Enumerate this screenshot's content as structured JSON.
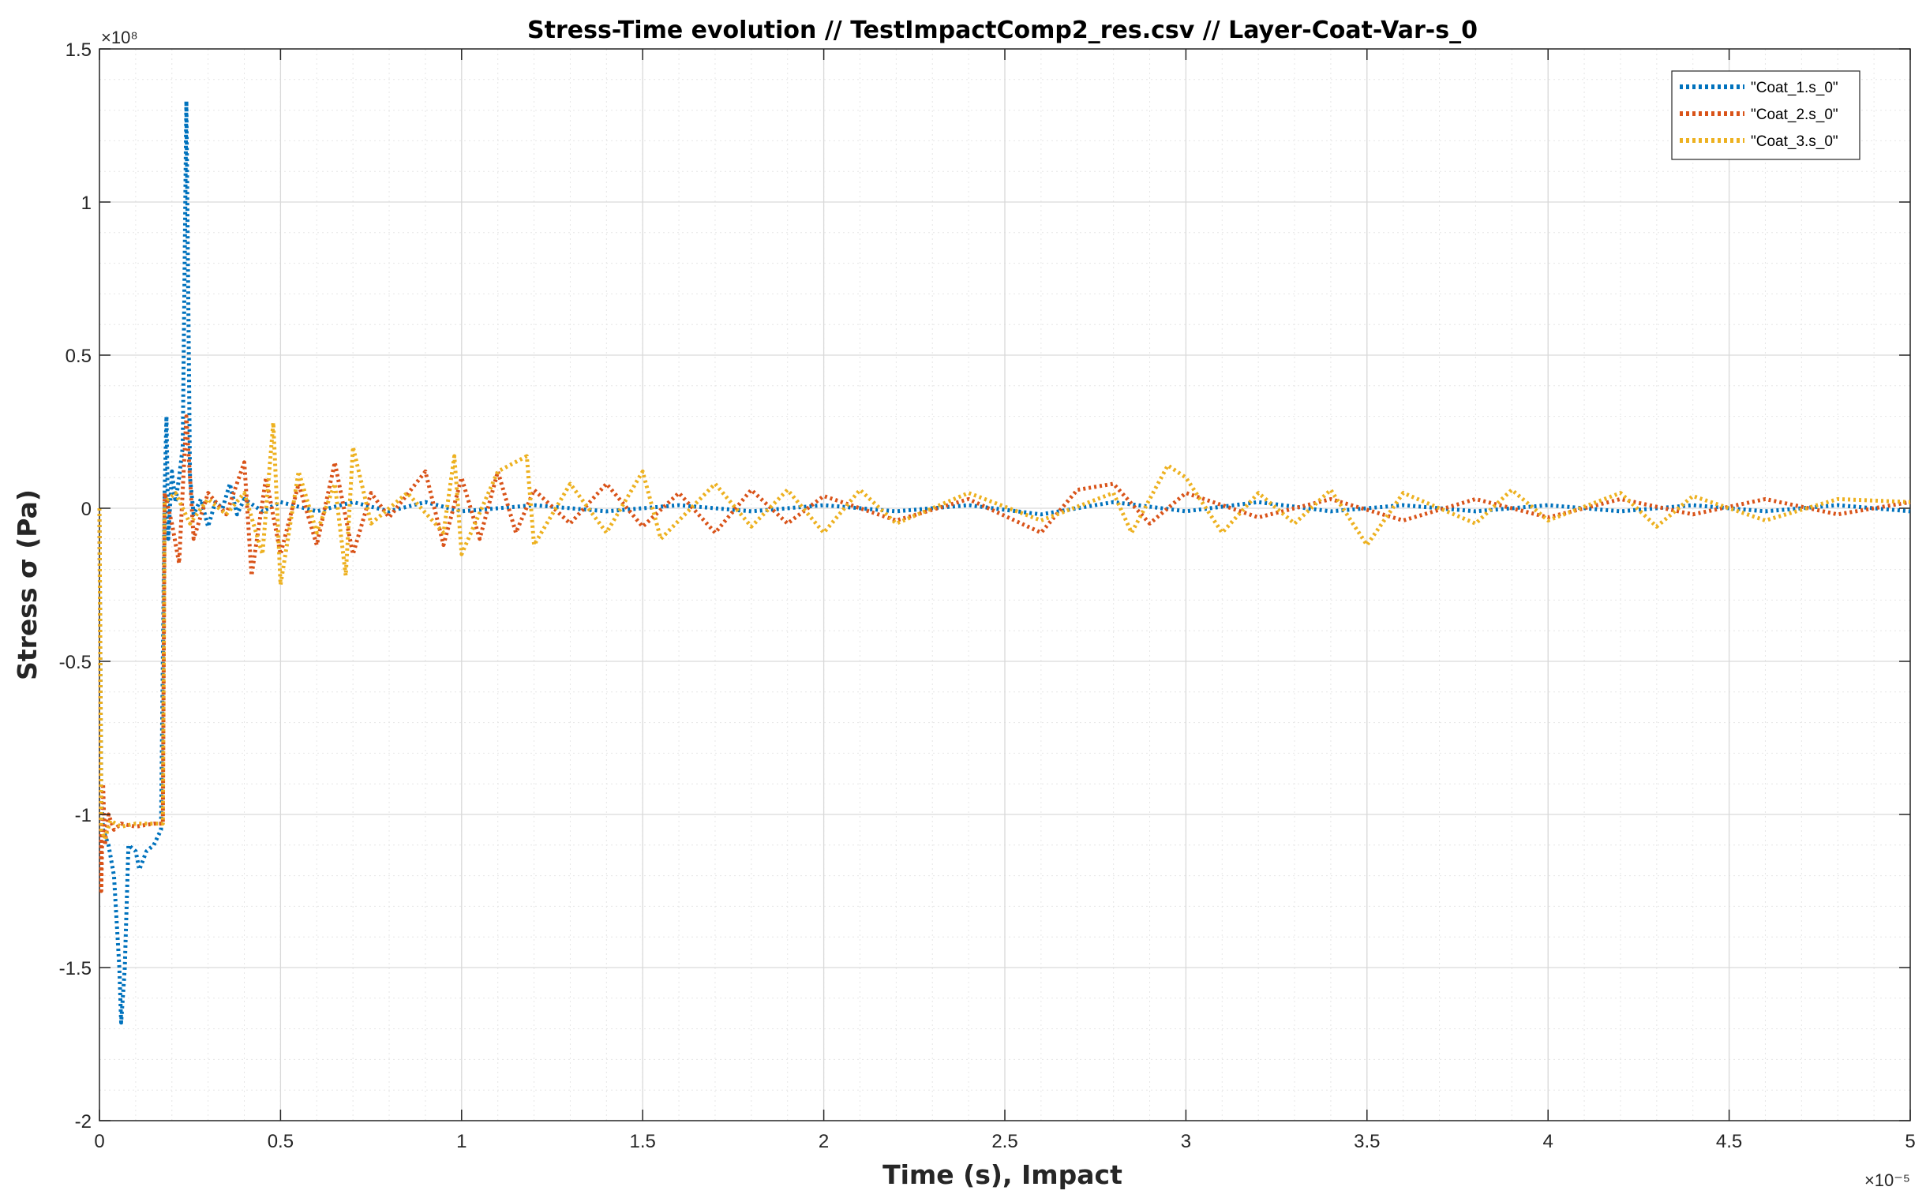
{
  "chart_data": {
    "type": "line",
    "title": "Stress-Time evolution  //  TestImpactComp2_res.csv // Layer-Coat-Var-s_0",
    "xlabel": "Time (s), Impact",
    "ylabel": "Stress σ (Pa)",
    "x_exponent_label": "×10⁻⁵",
    "y_exponent_label": "×10⁸",
    "xlim": [
      0,
      5e-05
    ],
    "ylim": [
      -200000000.0,
      150000000.0
    ],
    "x_tick_labels": [
      "0",
      "0.5",
      "1",
      "1.5",
      "2",
      "2.5",
      "3",
      "3.5",
      "4",
      "4.5",
      "5"
    ],
    "y_tick_labels": [
      "1.5",
      "1",
      "0.5",
      "0",
      "-0.5",
      "-1",
      "-1.5",
      "-2"
    ],
    "grid": true,
    "minor_grid": true,
    "legend_position": "top-right",
    "line_style": "dotted",
    "series": [
      {
        "name": "\"Coat_1.s_0\"",
        "color": "#0072BD",
        "points": [
          [
            0,
            0
          ],
          [
            5e-08,
            -95000000.0
          ],
          [
            1e-07,
            -105000000.0
          ],
          [
            2.5e-07,
            -110000000.0
          ],
          [
            4e-07,
            -120000000.0
          ],
          [
            5.5e-07,
            -150000000.0
          ],
          [
            6e-07,
            -168000000.0
          ],
          [
            7e-07,
            -150000000.0
          ],
          [
            8e-07,
            -110000000.0
          ],
          [
            1e-06,
            -112000000.0
          ],
          [
            1.1e-06,
            -118000000.0
          ],
          [
            1.3e-06,
            -112000000.0
          ],
          [
            1.5e-06,
            -110000000.0
          ],
          [
            1.7e-06,
            -105000000.0
          ],
          [
            1.8e-06,
            5000000.0
          ],
          [
            1.85e-06,
            30000000.0
          ],
          [
            1.9e-06,
            -10000000.0
          ],
          [
            2e-06,
            12000000.0
          ],
          [
            2.1e-06,
            2000000.0
          ],
          [
            2.2e-06,
            10000000.0
          ],
          [
            2.3e-06,
            20000000.0
          ],
          [
            2.4e-06,
            133000000.0
          ],
          [
            2.5e-06,
            10000000.0
          ],
          [
            2.6e-06,
            -2000000.0
          ],
          [
            2.8e-06,
            3000000.0
          ],
          [
            3e-06,
            -6000000.0
          ],
          [
            3.2e-06,
            2000000.0
          ],
          [
            3.4e-06,
            0.0
          ],
          [
            3.6e-06,
            8000000.0
          ],
          [
            3.8e-06,
            -2000000.0
          ],
          [
            4e-06,
            3000000.0
          ],
          [
            4.5e-06,
            -1000000.0
          ],
          [
            5e-06,
            2000000.0
          ],
          [
            6e-06,
            -1000000.0
          ],
          [
            7e-06,
            2000000.0
          ],
          [
            8e-06,
            -1000000.0
          ],
          [
            9e-06,
            2000000.0
          ],
          [
            1e-05,
            -1000000.0
          ],
          [
            1.2e-05,
            1000000.0
          ],
          [
            1.4e-05,
            -1000000.0
          ],
          [
            1.6e-05,
            1000000.0
          ],
          [
            1.8e-05,
            -1000000.0
          ],
          [
            2e-05,
            1000000.0
          ],
          [
            2.2e-05,
            -1000000.0
          ],
          [
            2.4e-05,
            1000000.0
          ],
          [
            2.6e-05,
            -2000000.0
          ],
          [
            2.8e-05,
            2000000.0
          ],
          [
            3e-05,
            -1000000.0
          ],
          [
            3.2e-05,
            2000000.0
          ],
          [
            3.4e-05,
            -1000000.0
          ],
          [
            3.6e-05,
            1000000.0
          ],
          [
            3.8e-05,
            -1000000.0
          ],
          [
            4e-05,
            1000000.0
          ],
          [
            4.2e-05,
            -1000000.0
          ],
          [
            4.4e-05,
            1000000.0
          ],
          [
            4.6e-05,
            -1000000.0
          ],
          [
            4.8e-05,
            1000000.0
          ],
          [
            5e-05,
            -1000000.0
          ]
        ]
      },
      {
        "name": "\"Coat_2.s_0\"",
        "color": "#D95319",
        "points": [
          [
            0,
            0
          ],
          [
            5e-08,
            -125000000.0
          ],
          [
            1e-07,
            -90000000.0
          ],
          [
            1.5e-07,
            -110000000.0
          ],
          [
            2.5e-07,
            -100000000.0
          ],
          [
            4e-07,
            -105000000.0
          ],
          [
            6e-07,
            -103000000.0
          ],
          [
            1e-06,
            -104000000.0
          ],
          [
            1.5e-06,
            -103000000.0
          ],
          [
            1.75e-06,
            -103000000.0
          ],
          [
            1.8e-06,
            5000000.0
          ],
          [
            2e-06,
            -5000000.0
          ],
          [
            2.2e-06,
            -18000000.0
          ],
          [
            2.4e-06,
            30000000.0
          ],
          [
            2.6e-06,
            -10000000.0
          ],
          [
            3e-06,
            5000000.0
          ],
          [
            3.5e-06,
            -2000000.0
          ],
          [
            4e-06,
            15000000.0
          ],
          [
            4.2e-06,
            -22000000.0
          ],
          [
            4.6e-06,
            10000000.0
          ],
          [
            5e-06,
            -15000000.0
          ],
          [
            5.5e-06,
            8000000.0
          ],
          [
            6e-06,
            -12000000.0
          ],
          [
            6.5e-06,
            15000000.0
          ],
          [
            7e-06,
            -15000000.0
          ],
          [
            7.5e-06,
            5000000.0
          ],
          [
            8e-06,
            -3000000.0
          ],
          [
            9e-06,
            12000000.0
          ],
          [
            9.5e-06,
            -12000000.0
          ],
          [
            1e-05,
            10000000.0
          ],
          [
            1.05e-05,
            -10000000.0
          ],
          [
            1.1e-05,
            12000000.0
          ],
          [
            1.15e-05,
            -8000000.0
          ],
          [
            1.2e-05,
            6000000.0
          ],
          [
            1.3e-05,
            -5000000.0
          ],
          [
            1.4e-05,
            8000000.0
          ],
          [
            1.5e-05,
            -6000000.0
          ],
          [
            1.6e-05,
            5000000.0
          ],
          [
            1.7e-05,
            -8000000.0
          ],
          [
            1.8e-05,
            6000000.0
          ],
          [
            1.9e-05,
            -5000000.0
          ],
          [
            2e-05,
            4000000.0
          ],
          [
            2.2e-05,
            -4000000.0
          ],
          [
            2.4e-05,
            3000000.0
          ],
          [
            2.6e-05,
            -8000000.0
          ],
          [
            2.7e-05,
            6000000.0
          ],
          [
            2.8e-05,
            8000000.0
          ],
          [
            2.9e-05,
            -5000000.0
          ],
          [
            3e-05,
            5000000.0
          ],
          [
            3.2e-05,
            -3000000.0
          ],
          [
            3.4e-05,
            3000000.0
          ],
          [
            3.6e-05,
            -4000000.0
          ],
          [
            3.8e-05,
            3000000.0
          ],
          [
            4e-05,
            -3000000.0
          ],
          [
            4.2e-05,
            3000000.0
          ],
          [
            4.4e-05,
            -2000000.0
          ],
          [
            4.6e-05,
            3000000.0
          ],
          [
            4.8e-05,
            -2000000.0
          ],
          [
            5e-05,
            2000000.0
          ]
        ]
      },
      {
        "name": "\"Coat_3.s_0\"",
        "color": "#EDB120",
        "points": [
          [
            0,
            0
          ],
          [
            5e-08,
            -105000000.0
          ],
          [
            1.5e-07,
            -108000000.0
          ],
          [
            3e-07,
            -102000000.0
          ],
          [
            6e-07,
            -104000000.0
          ],
          [
            1e-06,
            -103000000.0
          ],
          [
            1.5e-06,
            -103000000.0
          ],
          [
            1.75e-06,
            -103000000.0
          ],
          [
            1.8e-06,
            2000000.0
          ],
          [
            2.1e-06,
            5000000.0
          ],
          [
            2.5e-06,
            -5000000.0
          ],
          [
            3e-06,
            3000000.0
          ],
          [
            3.5e-06,
            -2000000.0
          ],
          [
            4e-06,
            5000000.0
          ],
          [
            4.5e-06,
            -15000000.0
          ],
          [
            4.8e-06,
            28000000.0
          ],
          [
            5e-06,
            -25000000.0
          ],
          [
            5.5e-06,
            12000000.0
          ],
          [
            6e-06,
            -8000000.0
          ],
          [
            6.5e-06,
            8000000.0
          ],
          [
            6.8e-06,
            -22000000.0
          ],
          [
            7e-06,
            20000000.0
          ],
          [
            7.5e-06,
            -5000000.0
          ],
          [
            8.5e-06,
            5000000.0
          ],
          [
            9.5e-06,
            -8000000.0
          ],
          [
            9.8e-06,
            17000000.0
          ],
          [
            1e-05,
            -15000000.0
          ],
          [
            1.1e-05,
            12000000.0
          ],
          [
            1.18e-05,
            17000000.0
          ],
          [
            1.2e-05,
            -12000000.0
          ],
          [
            1.3e-05,
            8000000.0
          ],
          [
            1.4e-05,
            -8000000.0
          ],
          [
            1.5e-05,
            12000000.0
          ],
          [
            1.55e-05,
            -10000000.0
          ],
          [
            1.7e-05,
            8000000.0
          ],
          [
            1.8e-05,
            -6000000.0
          ],
          [
            1.9e-05,
            6000000.0
          ],
          [
            2e-05,
            -8000000.0
          ],
          [
            2.1e-05,
            6000000.0
          ],
          [
            2.2e-05,
            -5000000.0
          ],
          [
            2.4e-05,
            5000000.0
          ],
          [
            2.6e-05,
            -4000000.0
          ],
          [
            2.8e-05,
            5000000.0
          ],
          [
            2.85e-05,
            -8000000.0
          ],
          [
            2.95e-05,
            14000000.0
          ],
          [
            3e-05,
            10000000.0
          ],
          [
            3.1e-05,
            -8000000.0
          ],
          [
            3.2e-05,
            5000000.0
          ],
          [
            3.3e-05,
            -5000000.0
          ],
          [
            3.4e-05,
            6000000.0
          ],
          [
            3.5e-05,
            -12000000.0
          ],
          [
            3.6e-05,
            5000000.0
          ],
          [
            3.8e-05,
            -5000000.0
          ],
          [
            3.9e-05,
            6000000.0
          ],
          [
            4e-05,
            -4000000.0
          ],
          [
            4.2e-05,
            5000000.0
          ],
          [
            4.3e-05,
            -6000000.0
          ],
          [
            4.4e-05,
            4000000.0
          ],
          [
            4.6e-05,
            -4000000.0
          ],
          [
            4.8e-05,
            3000000.0
          ],
          [
            5e-05,
            2000000.0
          ]
        ]
      }
    ]
  }
}
